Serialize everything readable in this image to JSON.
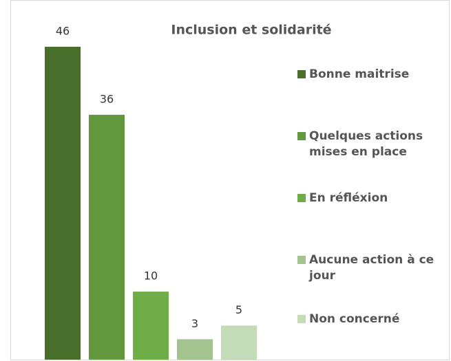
{
  "chart_data": {
    "type": "bar",
    "title": "Inclusion et solidarité",
    "series": [
      {
        "name": "Bonne maitrise",
        "color": "#4a6f2c",
        "values": [
          46
        ]
      },
      {
        "name": "Quelques actions mises en place",
        "color": "#63983e",
        "values": [
          36
        ]
      },
      {
        "name": "En réfléxion",
        "color": "#6fad47",
        "values": [
          10
        ]
      },
      {
        "name": "Aucune action à ce jour",
        "color": "#a3c48e",
        "values": [
          3
        ]
      },
      {
        "name": "Non concerné",
        "color": "#c4dbb8",
        "values": [
          5
        ]
      }
    ]
  }
}
